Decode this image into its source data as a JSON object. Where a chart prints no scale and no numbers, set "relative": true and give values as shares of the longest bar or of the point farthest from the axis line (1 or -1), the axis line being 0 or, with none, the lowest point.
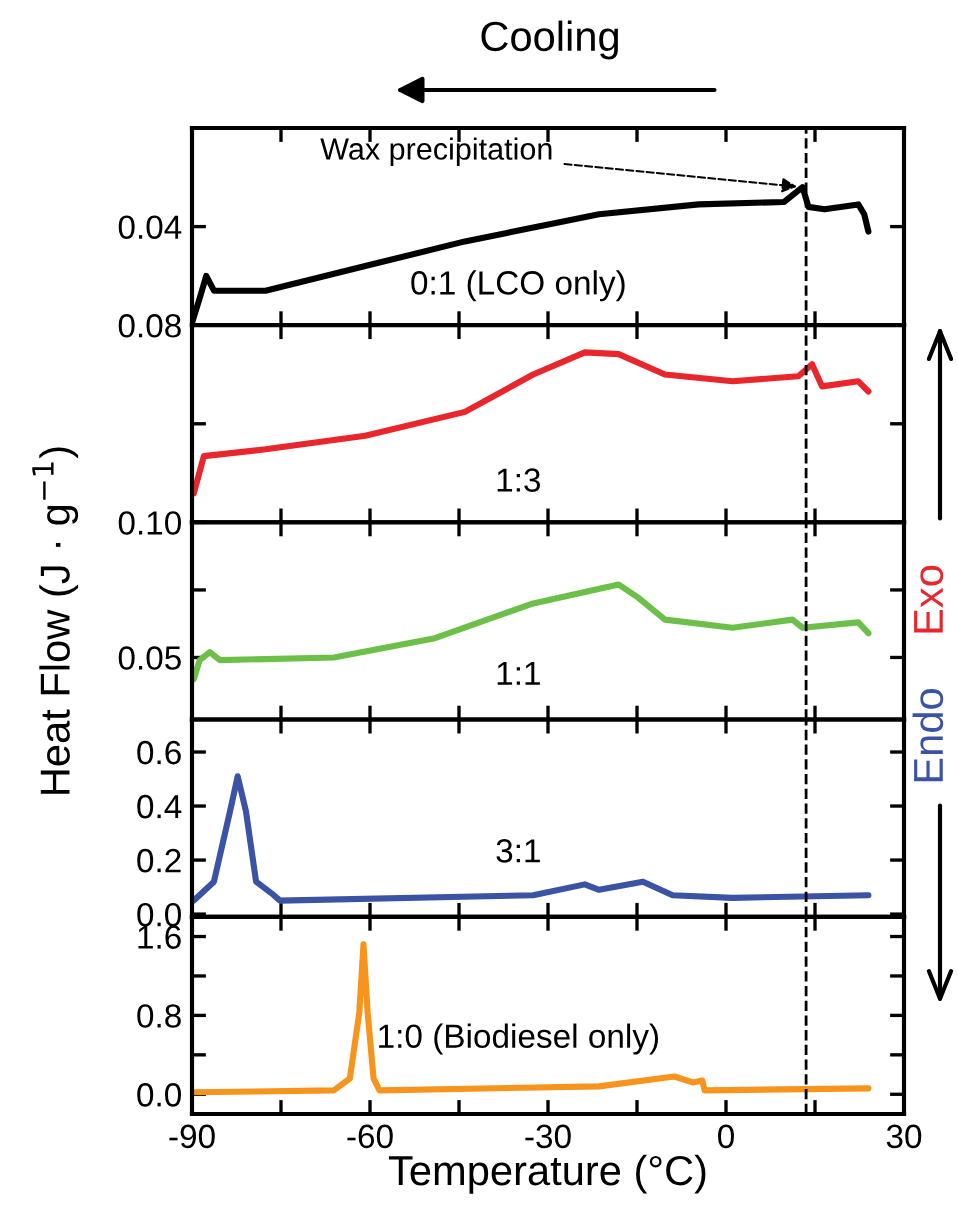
{
  "chart_data": [
    {
      "type": "line",
      "xlim": [
        -90,
        30
      ],
      "xticks": [
        -90,
        {
          "value": -75,
          "label": null
        },
        -60,
        {
          "value": -45,
          "label": null
        },
        -30,
        {
          "value": -15,
          "label": null
        },
        0,
        {
          "value": 15,
          "label": null
        },
        30
      ],
      "ylim": [
        0.08,
        0.0
      ],
      "yticks": [
        0.04,
        0.08
      ],
      "tick_labels": "y",
      "series": [
        {
          "name": "0:1 (LCO only)",
          "color": "#000000",
          "x": [
            -90,
            -88.7,
            -87.6,
            -86.3,
            -77.6,
            -60.8,
            -44.0,
            -21.4,
            -4.6,
            9.8,
            12.9,
            13.9,
            16.6,
            22.3,
            23.3,
            24.0
          ],
          "values": [
            0.079,
            0.069,
            0.06,
            0.066,
            0.066,
            0.056,
            0.046,
            0.035,
            0.031,
            0.03,
            0.024,
            0.032,
            0.033,
            0.031,
            0.035,
            0.042
          ]
        }
      ],
      "ref_lines": [
        {
          "axis": "x",
          "value": 13.5,
          "line_style": "dashed",
          "color": "#000000"
        }
      ],
      "annotations": [
        {
          "text": "Wax precipitation",
          "x": 12.9,
          "y": 0.024
        },
        "Cooling"
      ]
    },
    {
      "type": "line",
      "xlim": [
        -90,
        30
      ],
      "xticks": [
        -90,
        {
          "value": -75,
          "label": null
        },
        -60,
        {
          "value": -45,
          "label": null
        },
        -30,
        {
          "value": -15,
          "label": null
        },
        0,
        {
          "value": 15,
          "label": null
        },
        30
      ],
      "relative": true,
      "tick_labels": false,
      "series": [
        {
          "name": "1:3",
          "color": "#e8262b",
          "x": [
            -89.7,
            -88.0,
            -77.6,
            -60.8,
            -44.0,
            -32.5,
            -23.8,
            -18.1,
            -10.3,
            1.1,
            12.2,
            14.5,
            16.2,
            22.3,
            24.0
          ],
          "values": [
            0.17,
            0.39,
            0.43,
            0.51,
            0.65,
            0.87,
            1.0,
            0.99,
            0.87,
            0.83,
            0.86,
            0.93,
            0.8,
            0.83,
            0.77
          ]
        }
      ],
      "ref_lines": [
        {
          "axis": "x",
          "value": 13.5,
          "line_style": "dashed",
          "color": "#000000"
        }
      ],
      "annotations": [
        "Exo"
      ]
    },
    {
      "type": "line",
      "xlim": [
        -90,
        30
      ],
      "xticks": [
        -90,
        {
          "value": -75,
          "label": null
        },
        -60,
        {
          "value": -45,
          "label": null
        },
        -30,
        {
          "value": -15,
          "label": null
        },
        0,
        {
          "value": 15,
          "label": null
        },
        30
      ],
      "ylim": [
        0.027,
        0.1
      ],
      "yticks": [
        0.05,
        {
          "value": 0.075,
          "label": null
        },
        {
          "value": 0.1,
          "label": "0.10"
        }
      ],
      "tick_labels": "y",
      "ylabel": "Heat Flow (J · g$^{−1}$)",
      "series": [
        {
          "name": "1:1",
          "color": "#6cc04a",
          "x": [
            -89.7,
            -88.7,
            -87.0,
            -85.3,
            -66.1,
            -49.3,
            -32.5,
            -18.1,
            -14.7,
            -10.3,
            1.1,
            11.2,
            12.9,
            22.3,
            24.0
          ],
          "values": [
            0.042,
            0.049,
            0.052,
            0.049,
            0.05,
            0.057,
            0.07,
            0.077,
            0.072,
            0.064,
            0.061,
            0.064,
            0.061,
            0.063,
            0.059
          ]
        }
      ],
      "ref_lines": [
        {
          "axis": "x",
          "value": 13.5,
          "line_style": "dashed",
          "color": "#000000"
        }
      ]
    },
    {
      "type": "line",
      "xlim": [
        -90,
        30
      ],
      "xticks": [
        -90,
        {
          "value": -75,
          "label": null
        },
        -60,
        {
          "value": -45,
          "label": null
        },
        -30,
        {
          "value": -15,
          "label": null
        },
        0,
        {
          "value": 15,
          "label": null
        },
        30
      ],
      "ylim": [
        -0.01,
        0.72
      ],
      "yticks": [
        {
          "value": 0.0,
          "label": "0.0"
        },
        0.2,
        0.4,
        0.6
      ],
      "tick_labels": "y",
      "series": [
        {
          "name": "3:1",
          "color": "#3a53a4",
          "x": [
            -89.7,
            -86.3,
            -83.6,
            -82.3,
            -80.9,
            -79.2,
            -76.2,
            -75.2,
            -32.5,
            -23.8,
            -21.4,
            -14.0,
            -9.0,
            1.1,
            24.0
          ],
          "values": [
            0.05,
            0.12,
            0.38,
            0.51,
            0.38,
            0.12,
            0.07,
            0.05,
            0.07,
            0.11,
            0.09,
            0.12,
            0.07,
            0.06,
            0.07
          ]
        }
      ],
      "ref_lines": [
        {
          "axis": "x",
          "value": 13.5,
          "line_style": "dashed",
          "color": "#000000"
        }
      ],
      "annotations": [
        "Endo"
      ]
    },
    {
      "type": "line",
      "xlim": [
        -90,
        30
      ],
      "xticks": [
        -90,
        {
          "value": -75,
          "label": null
        },
        -60,
        {
          "value": -45,
          "label": null
        },
        -30,
        {
          "value": -15,
          "label": null
        },
        0,
        {
          "value": 15,
          "label": null
        },
        30
      ],
      "ylim": [
        -0.2,
        1.8
      ],
      "yticks": [
        {
          "value": 0.0,
          "label": "0.0"
        },
        {
          "value": 0.4,
          "label": null
        },
        0.8,
        {
          "value": 1.2,
          "label": null
        },
        1.6
      ],
      "xlabel": "Temperature (°C)",
      "series": [
        {
          "name": "1:0 (Biodiesel only)",
          "color": "#f7941d",
          "x": [
            -89.7,
            -66.1,
            -63.4,
            -61.8,
            -61.1,
            -60.4,
            -59.4,
            -58.4,
            -21.4,
            -8.7,
            -5.6,
            -4.0,
            -3.6,
            24.0
          ],
          "values": [
            0.02,
            0.04,
            0.16,
            0.83,
            1.52,
            0.83,
            0.16,
            0.04,
            0.08,
            0.18,
            0.12,
            0.14,
            0.04,
            0.06
          ]
        }
      ],
      "ref_lines": [
        {
          "axis": "x",
          "value": 13.5,
          "line_style": "dashed",
          "color": "#000000"
        }
      ]
    }
  ]
}
